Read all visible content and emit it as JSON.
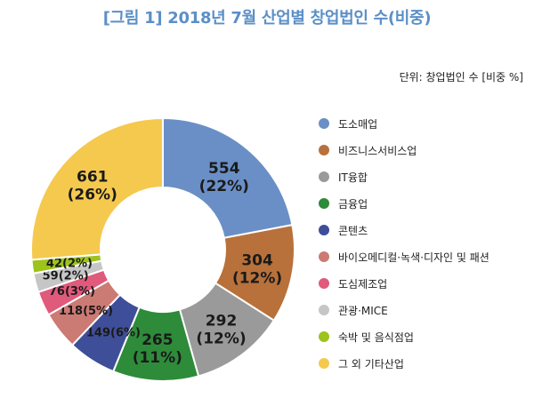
{
  "header": {
    "title": "[그림 1] 2018년 7월 산업별 창업법인 수(비중)",
    "unit": "단위: 창업법인 수 [비중 %]"
  },
  "chart_data": {
    "type": "pie",
    "title": "[그림 1] 2018년 7월 산업별 창업법인 수(비중)",
    "unit": "단위: 창업법인 수 [비중 %]",
    "donut": true,
    "legend": "right",
    "slices": [
      {
        "label": "도소매업",
        "value": 554,
        "pct": "22%",
        "color": "#6a8fc6"
      },
      {
        "label": "비즈니스서비스업",
        "value": 304,
        "pct": "12%",
        "color": "#b8713a"
      },
      {
        "label": "IT융합",
        "value": 292,
        "pct": "12%",
        "color": "#9a9a9a"
      },
      {
        "label": "금융업",
        "value": 265,
        "pct": "11%",
        "color": "#2e8b3a"
      },
      {
        "label": "콘텐츠",
        "value": 149,
        "pct": "6%",
        "color": "#3f4e98"
      },
      {
        "label": "바이오메디컬·녹색·디자인 및 패션",
        "value": 118,
        "pct": "5%",
        "color": "#cc7a74"
      },
      {
        "label": "도심제조업",
        "value": 76,
        "pct": "3%",
        "color": "#e05a7c"
      },
      {
        "label": "관광·MICE",
        "value": 59,
        "pct": "2%",
        "color": "#c6c6c6"
      },
      {
        "label": "숙박 및 음식점업",
        "value": 42,
        "pct": "2%",
        "color": "#9dc31c"
      },
      {
        "label": "그 외 기타산업",
        "value": 661,
        "pct": "26%",
        "color": "#f5c94e"
      }
    ]
  }
}
